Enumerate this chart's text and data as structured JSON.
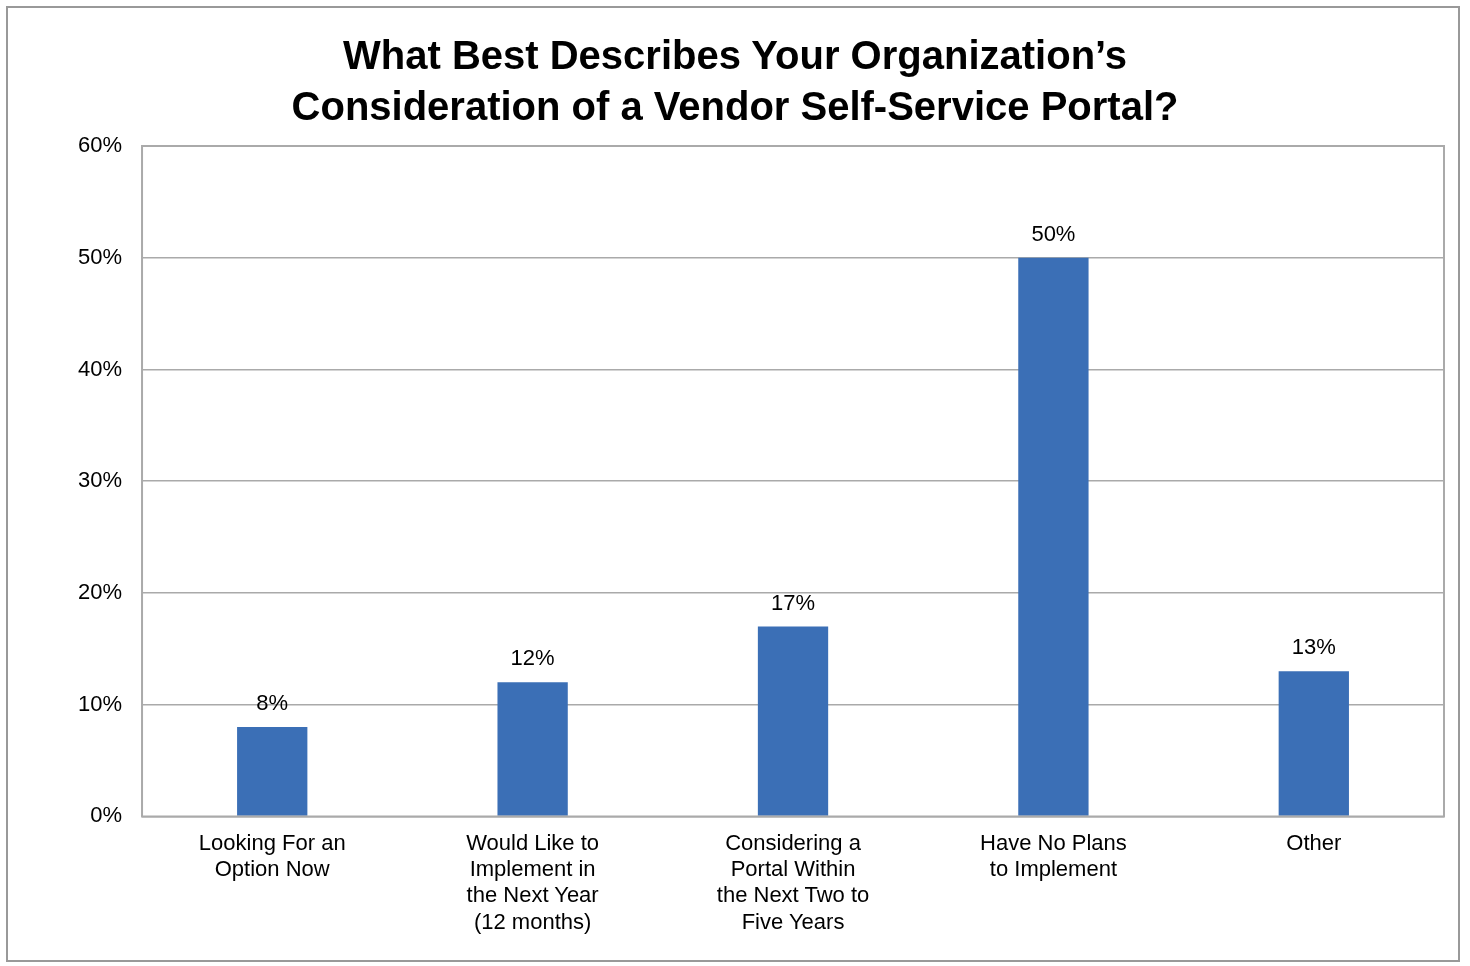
{
  "chart_data": {
    "type": "bar",
    "title": "What Best Describes Your Organization’s Consideration of a Vendor Self-Service Portal?",
    "categories": [
      "Looking For an Option Now",
      "Would Like to Implement in the Next Year (12 months)",
      "Considering a Portal Within the Next Two to Five Years",
      "Have No Plans to Implement",
      "Other"
    ],
    "values": [
      8,
      12,
      17,
      50,
      13
    ],
    "value_labels": [
      "8%",
      "12%",
      "17%",
      "50%",
      "13%"
    ],
    "color": "#3b6fb6",
    "ylim": [
      0,
      60
    ],
    "yticks": [
      {
        "value": 0,
        "label": "0%"
      },
      {
        "value": 10,
        "label": "10%"
      },
      {
        "value": 20,
        "label": "20%"
      },
      {
        "value": 30,
        "label": "30%"
      },
      {
        "value": 40,
        "label": "40%"
      },
      {
        "value": 50,
        "label": "50%"
      },
      {
        "value": 60,
        "label": "60%"
      }
    ],
    "grid": "y",
    "legend": false
  }
}
